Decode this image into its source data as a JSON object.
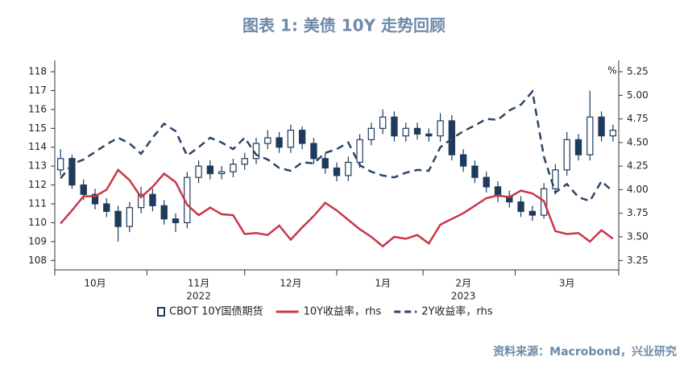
{
  "chart_data": {
    "type": "candlestick",
    "title": "图表 1:  美债 10Y 走势回顾",
    "source": "资料来源：Macrobond，兴业研究",
    "y2_unit": "%",
    "categories": [
      null,
      null,
      null,
      "10月",
      null,
      null,
      null,
      null,
      null,
      null,
      null,
      null,
      "11月",
      null,
      null,
      null,
      null,
      null,
      null,
      null,
      "12月",
      null,
      null,
      null,
      null,
      null,
      null,
      null,
      "1月",
      null,
      null,
      null,
      null,
      null,
      null,
      "2月",
      null,
      null,
      null,
      null,
      null,
      null,
      null,
      null,
      "3月",
      null,
      null,
      null,
      null
    ],
    "x_group_labels": [
      "2022",
      "2023"
    ],
    "ylim": [
      107.5,
      118.6
    ],
    "yticks": [
      108,
      109,
      110,
      111,
      112,
      113,
      114,
      115,
      116,
      117,
      118
    ],
    "y2lim": [
      3.15,
      5.37
    ],
    "y2ticks": [
      3.25,
      {
        "value": 3.5,
        "label": "3.50"
      },
      3.75,
      {
        "value": 4,
        "label": "4.00"
      },
      4.25,
      {
        "value": 4.5,
        "label": "4.50"
      },
      4.75,
      {
        "value": 5,
        "label": "5.00"
      },
      5.25
    ],
    "series": [
      {
        "name": "CBOT 10Y国债期货",
        "color": "#1f3b5c",
        "open": [
          112.8,
          113.4,
          112.0,
          111.5,
          111.0,
          110.6,
          109.8,
          110.8,
          111.5,
          110.9,
          110.2,
          110.0,
          112.4,
          113.0,
          112.6,
          112.7,
          113.1,
          113.4,
          114.2,
          114.5,
          114.0,
          114.9,
          114.2,
          113.4,
          112.9,
          112.5,
          113.2,
          114.4,
          115.0,
          115.6,
          114.6,
          115.0,
          114.7,
          114.6,
          115.4,
          113.6,
          113.0,
          112.4,
          111.9,
          111.4,
          111.1,
          110.6,
          110.4,
          111.8,
          112.8,
          114.4,
          113.6,
          115.6,
          114.6
        ],
        "high": [
          113.9,
          113.6,
          112.3,
          111.8,
          111.3,
          110.9,
          111.1,
          111.9,
          111.8,
          111.2,
          110.5,
          112.7,
          113.3,
          113.3,
          113.0,
          113.4,
          113.7,
          114.5,
          114.9,
          114.8,
          115.2,
          115.1,
          114.5,
          113.7,
          113.2,
          113.5,
          114.7,
          115.3,
          116.0,
          115.9,
          115.3,
          115.3,
          115.0,
          115.8,
          115.7,
          113.9,
          113.3,
          112.7,
          112.2,
          111.7,
          111.4,
          110.9,
          112.1,
          113.1,
          114.8,
          114.7,
          117.0,
          115.9,
          115.2
        ],
        "low": [
          112.5,
          111.8,
          111.2,
          110.7,
          110.3,
          109.0,
          109.5,
          110.5,
          110.6,
          109.9,
          109.5,
          109.7,
          112.1,
          112.3,
          112.3,
          112.4,
          112.8,
          113.1,
          113.9,
          113.7,
          113.7,
          113.9,
          113.1,
          112.6,
          112.2,
          112.2,
          112.9,
          114.1,
          114.7,
          114.3,
          114.3,
          114.4,
          114.3,
          114.3,
          113.3,
          112.7,
          112.1,
          111.6,
          111.1,
          110.8,
          110.3,
          110.1,
          110.2,
          111.5,
          112.5,
          113.3,
          113.3,
          114.3,
          114.3
        ],
        "close": [
          113.4,
          112.0,
          111.5,
          111.0,
          110.6,
          109.8,
          110.8,
          111.5,
          110.9,
          110.2,
          110.0,
          112.4,
          113.0,
          112.6,
          112.7,
          113.1,
          113.4,
          114.2,
          114.5,
          114.0,
          114.9,
          114.2,
          113.4,
          112.9,
          112.5,
          113.2,
          114.4,
          115.0,
          115.6,
          114.6,
          115.0,
          114.7,
          114.6,
          115.4,
          113.6,
          113.0,
          112.4,
          111.9,
          111.4,
          111.1,
          110.6,
          110.4,
          111.8,
          112.8,
          114.4,
          113.6,
          115.6,
          114.6,
          114.9
        ]
      },
      {
        "name": "10Y收益率，rhs",
        "color": "#c8374a",
        "axis": "y2",
        "values": [
          3.64,
          3.78,
          3.93,
          3.93,
          4.0,
          4.21,
          4.1,
          3.92,
          4.03,
          4.17,
          4.08,
          3.84,
          3.73,
          3.81,
          3.74,
          3.73,
          3.53,
          3.54,
          3.52,
          3.62,
          3.47,
          3.6,
          3.72,
          3.86,
          3.78,
          3.68,
          3.58,
          3.5,
          3.4,
          3.5,
          3.48,
          3.52,
          3.43,
          3.63,
          3.69,
          3.75,
          3.83,
          3.91,
          3.94,
          3.92,
          3.99,
          3.96,
          3.88,
          3.56,
          3.53,
          3.54,
          3.45,
          3.57,
          3.48
        ]
      },
      {
        "name": "2Y收益率，rhs",
        "color": "#2b4566",
        "axis": "y2",
        "dashed": true,
        "values": [
          4.12,
          4.27,
          4.32,
          4.4,
          4.48,
          4.55,
          4.49,
          4.38,
          4.55,
          4.7,
          4.62,
          4.36,
          4.45,
          4.55,
          4.5,
          4.43,
          4.55,
          4.37,
          4.32,
          4.23,
          4.2,
          4.29,
          4.28,
          4.39,
          4.43,
          4.5,
          4.26,
          4.19,
          4.15,
          4.13,
          4.18,
          4.21,
          4.2,
          4.45,
          4.54,
          4.62,
          4.68,
          4.75,
          4.74,
          4.84,
          4.9,
          5.04,
          4.35,
          3.97,
          4.06,
          3.92,
          3.88,
          4.09,
          3.98
        ]
      }
    ]
  }
}
